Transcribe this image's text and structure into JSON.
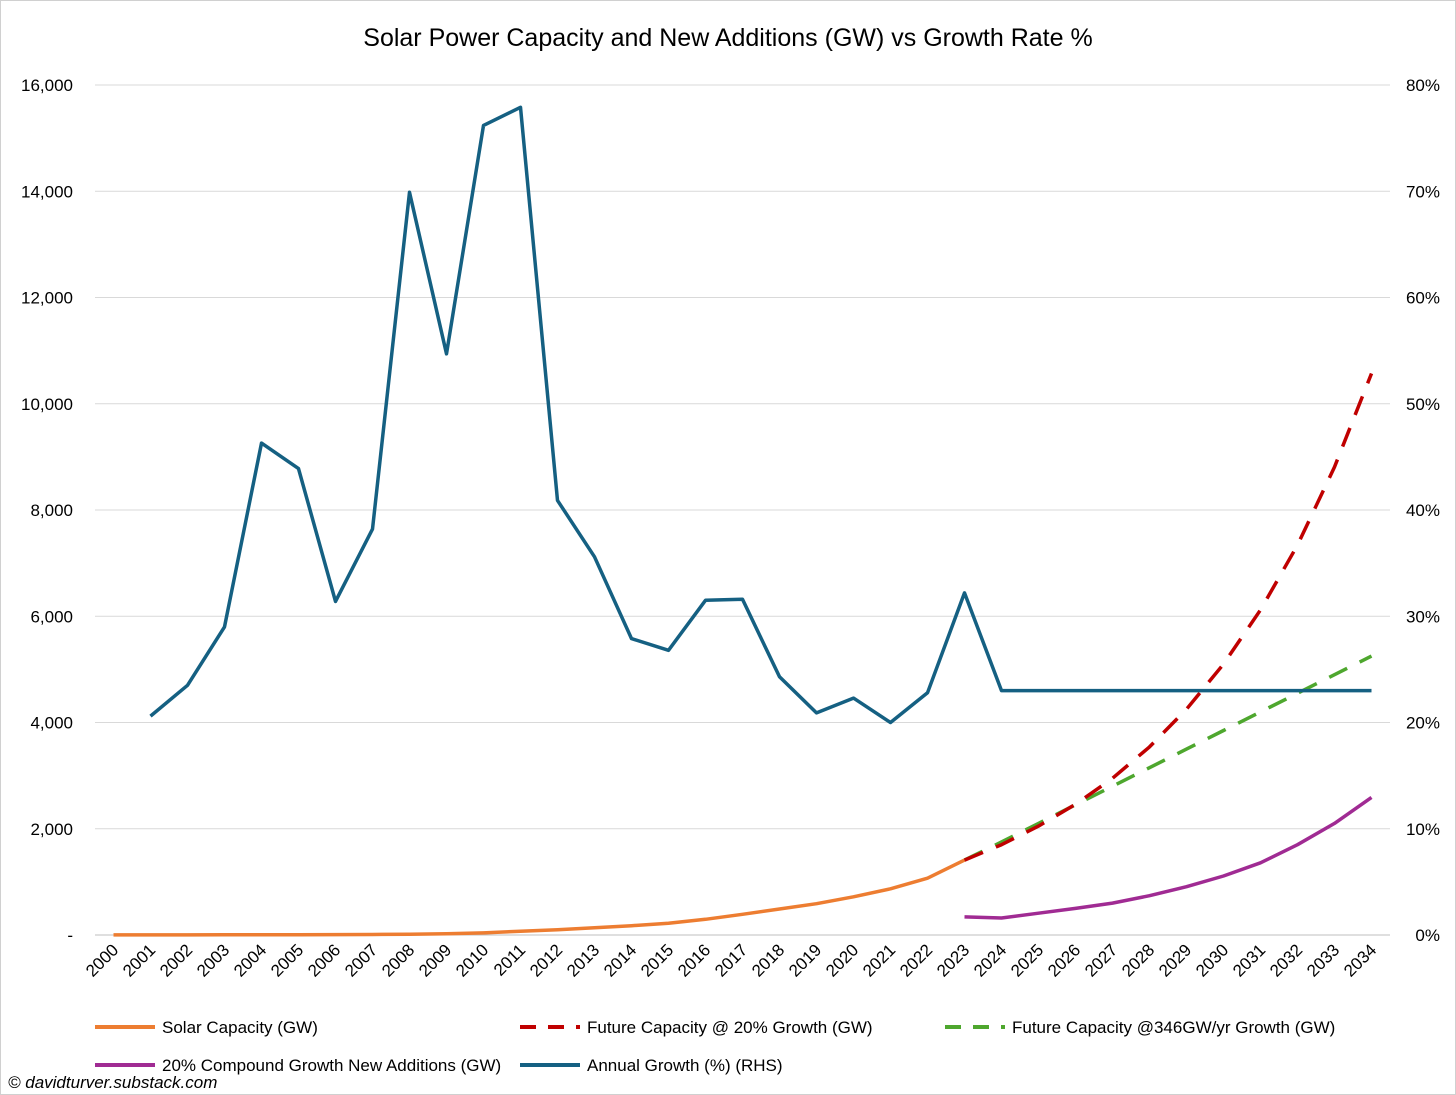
{
  "credit": "© davidturver.substack.com",
  "chart_data": {
    "type": "line",
    "title": "Solar Power Capacity and New Additions (GW) vs Growth Rate %",
    "xlabel": "",
    "ylabel": "",
    "y2label": "",
    "x": [
      "2000",
      "2001",
      "2002",
      "2003",
      "2004",
      "2005",
      "2006",
      "2007",
      "2008",
      "2009",
      "2010",
      "2011",
      "2012",
      "2013",
      "2014",
      "2015",
      "2016",
      "2017",
      "2018",
      "2019",
      "2020",
      "2021",
      "2022",
      "2023",
      "2024",
      "2025",
      "2026",
      "2027",
      "2028",
      "2029",
      "2030",
      "2031",
      "2032",
      "2033",
      "2034"
    ],
    "ylim": [
      0,
      16000
    ],
    "y_ticks": [
      0,
      2000,
      4000,
      6000,
      8000,
      10000,
      12000,
      14000,
      16000
    ],
    "y_tick_labels": [
      "-",
      "2,000",
      "4,000",
      "6,000",
      "8,000",
      "10,000",
      "12,000",
      "14,000",
      "16,000"
    ],
    "y2lim": [
      0,
      80
    ],
    "y2_ticks": [
      0,
      10,
      20,
      30,
      40,
      50,
      60,
      70,
      80
    ],
    "y2_tick_labels": [
      "0%",
      "10%",
      "20%",
      "30%",
      "40%",
      "50%",
      "60%",
      "70%",
      "80%"
    ],
    "grid": true,
    "legend_position": "bottom",
    "series": [
      {
        "name": "Solar Capacity (GW)",
        "axis": "left",
        "color": "#ed7d31",
        "style": "solid",
        "values": [
          1,
          2,
          2,
          3,
          4,
          5,
          7,
          9,
          15,
          23,
          40,
          71,
          100,
          135,
          175,
          220,
          295,
          390,
          490,
          590,
          720,
          870,
          1070,
          1410,
          null,
          null,
          null,
          null,
          null,
          null,
          null,
          null,
          null,
          null,
          null
        ]
      },
      {
        "name": "Future Capacity @ 20% Growth (GW)",
        "axis": "left",
        "color": "#c00000",
        "style": "dashed",
        "values": [
          null,
          null,
          null,
          null,
          null,
          null,
          null,
          null,
          null,
          null,
          null,
          null,
          null,
          null,
          null,
          null,
          null,
          null,
          null,
          null,
          null,
          null,
          null,
          1410,
          1700,
          2050,
          2460,
          2950,
          3540,
          4250,
          5100,
          6120,
          7340,
          8810,
          10570
        ]
      },
      {
        "name": "Future Capacity @346GW/yr Growth (GW)",
        "axis": "left",
        "color": "#4ea72e",
        "style": "dashed",
        "values": [
          null,
          null,
          null,
          null,
          null,
          null,
          null,
          null,
          null,
          null,
          null,
          null,
          null,
          null,
          null,
          null,
          null,
          null,
          null,
          null,
          null,
          null,
          null,
          1410,
          1750,
          2100,
          2450,
          2800,
          3150,
          3500,
          3850,
          4200,
          4550,
          4900,
          5250
        ]
      },
      {
        "name": "20% Compound Growth New Additions (GW)",
        "axis": "left",
        "color": "#a02b93",
        "style": "solid",
        "values": [
          null,
          null,
          null,
          null,
          null,
          null,
          null,
          null,
          null,
          null,
          null,
          null,
          null,
          null,
          null,
          null,
          null,
          null,
          null,
          null,
          null,
          null,
          null,
          340,
          320,
          410,
          500,
          600,
          740,
          910,
          1110,
          1360,
          1700,
          2100,
          2590
        ]
      },
      {
        "name": "Annual Growth (%) (RHS)",
        "axis": "right",
        "color": "#156082",
        "style": "solid",
        "values": [
          null,
          20.6,
          23.5,
          29.0,
          46.3,
          43.9,
          31.4,
          38.2,
          69.9,
          54.7,
          76.2,
          77.9,
          40.9,
          35.6,
          27.9,
          26.8,
          31.5,
          31.6,
          24.3,
          20.9,
          22.3,
          20.0,
          22.8,
          32.2,
          23.0,
          23.0,
          23.0,
          23.0,
          23.0,
          23.0,
          23.0,
          23.0,
          23.0,
          23.0,
          23.0
        ]
      }
    ]
  }
}
